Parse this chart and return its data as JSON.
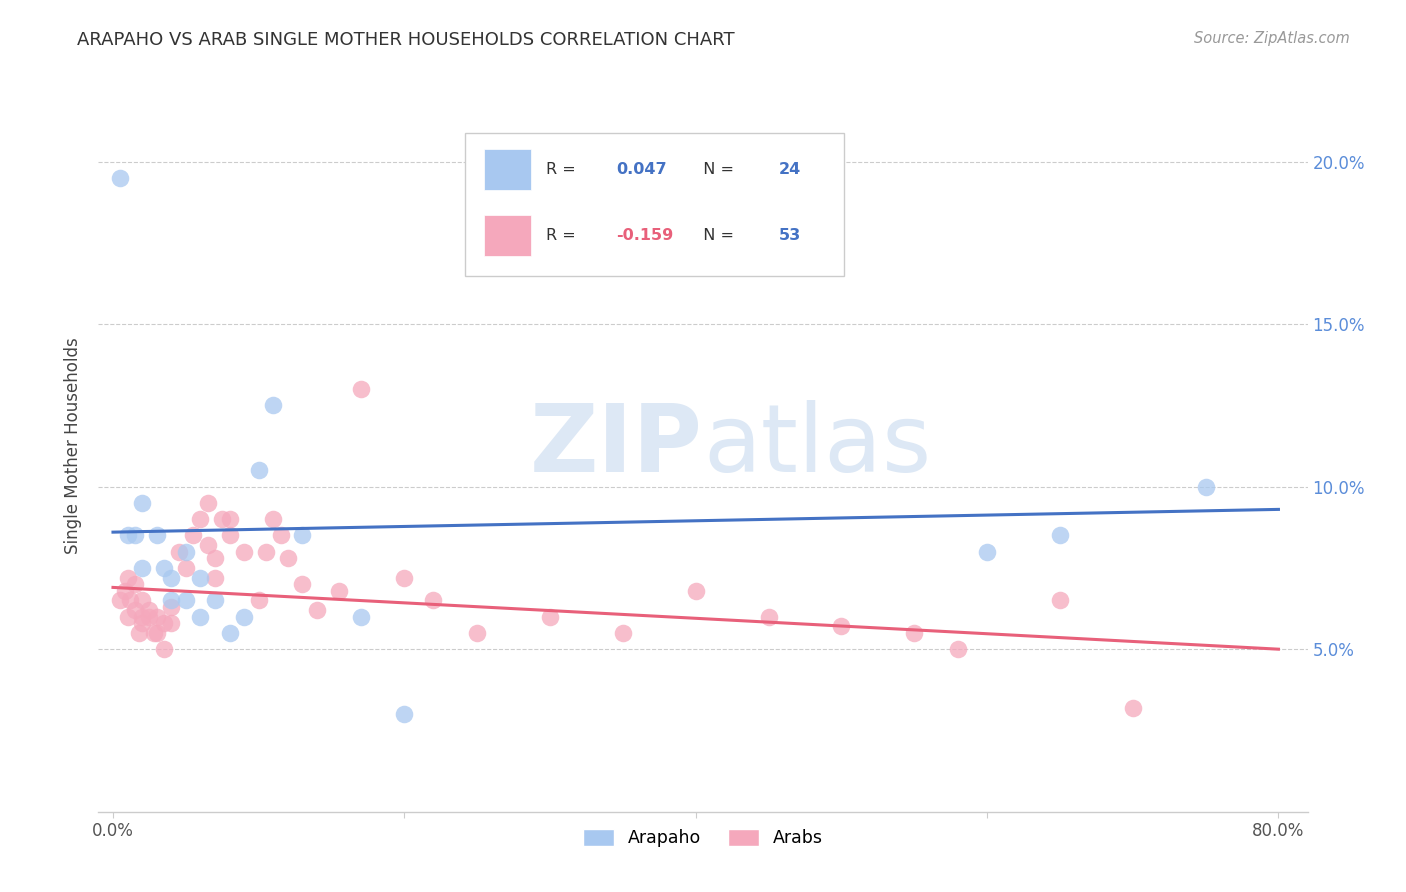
{
  "title": "ARAPAHO VS ARAB SINGLE MOTHER HOUSEHOLDS CORRELATION CHART",
  "source": "Source: ZipAtlas.com",
  "ylabel": "Single Mother Households",
  "xtick_vals": [
    0.0,
    0.2,
    0.4,
    0.6,
    0.8
  ],
  "xlabel_ticks": [
    "0.0%",
    "",
    "",
    "",
    "80.0%"
  ],
  "ytick_vals": [
    0.05,
    0.1,
    0.15,
    0.2
  ],
  "ylabel_ticks": [
    "5.0%",
    "10.0%",
    "15.0%",
    "20.0%"
  ],
  "xlim": [
    -0.01,
    0.82
  ],
  "ylim": [
    0.0,
    0.225
  ],
  "arapaho_R": 0.047,
  "arapaho_N": 24,
  "arab_R": -0.159,
  "arab_N": 53,
  "arapaho_color": "#a8c8f0",
  "arab_color": "#f5a8bc",
  "arapaho_line_color": "#4472c4",
  "arab_line_color": "#e8607a",
  "arapaho_x": [
    0.005,
    0.01,
    0.015,
    0.02,
    0.02,
    0.03,
    0.035,
    0.04,
    0.04,
    0.05,
    0.05,
    0.06,
    0.06,
    0.07,
    0.08,
    0.09,
    0.1,
    0.11,
    0.13,
    0.17,
    0.2,
    0.6,
    0.65,
    0.75
  ],
  "arapaho_y": [
    0.195,
    0.085,
    0.085,
    0.095,
    0.075,
    0.085,
    0.075,
    0.072,
    0.065,
    0.08,
    0.065,
    0.072,
    0.06,
    0.065,
    0.055,
    0.06,
    0.105,
    0.125,
    0.085,
    0.06,
    0.03,
    0.08,
    0.085,
    0.1
  ],
  "arab_x": [
    0.005,
    0.008,
    0.01,
    0.01,
    0.012,
    0.015,
    0.015,
    0.018,
    0.02,
    0.02,
    0.02,
    0.025,
    0.025,
    0.028,
    0.03,
    0.03,
    0.035,
    0.035,
    0.04,
    0.04,
    0.045,
    0.05,
    0.055,
    0.06,
    0.065,
    0.065,
    0.07,
    0.07,
    0.075,
    0.08,
    0.08,
    0.09,
    0.1,
    0.105,
    0.11,
    0.115,
    0.12,
    0.13,
    0.14,
    0.155,
    0.17,
    0.2,
    0.22,
    0.25,
    0.3,
    0.35,
    0.4,
    0.45,
    0.5,
    0.55,
    0.58,
    0.65,
    0.7
  ],
  "arab_y": [
    0.065,
    0.068,
    0.072,
    0.06,
    0.065,
    0.07,
    0.062,
    0.055,
    0.06,
    0.065,
    0.058,
    0.062,
    0.06,
    0.055,
    0.06,
    0.055,
    0.05,
    0.058,
    0.058,
    0.063,
    0.08,
    0.075,
    0.085,
    0.09,
    0.082,
    0.095,
    0.072,
    0.078,
    0.09,
    0.085,
    0.09,
    0.08,
    0.065,
    0.08,
    0.09,
    0.085,
    0.078,
    0.07,
    0.062,
    0.068,
    0.13,
    0.072,
    0.065,
    0.055,
    0.06,
    0.055,
    0.068,
    0.06,
    0.057,
    0.055,
    0.05,
    0.065,
    0.032
  ]
}
